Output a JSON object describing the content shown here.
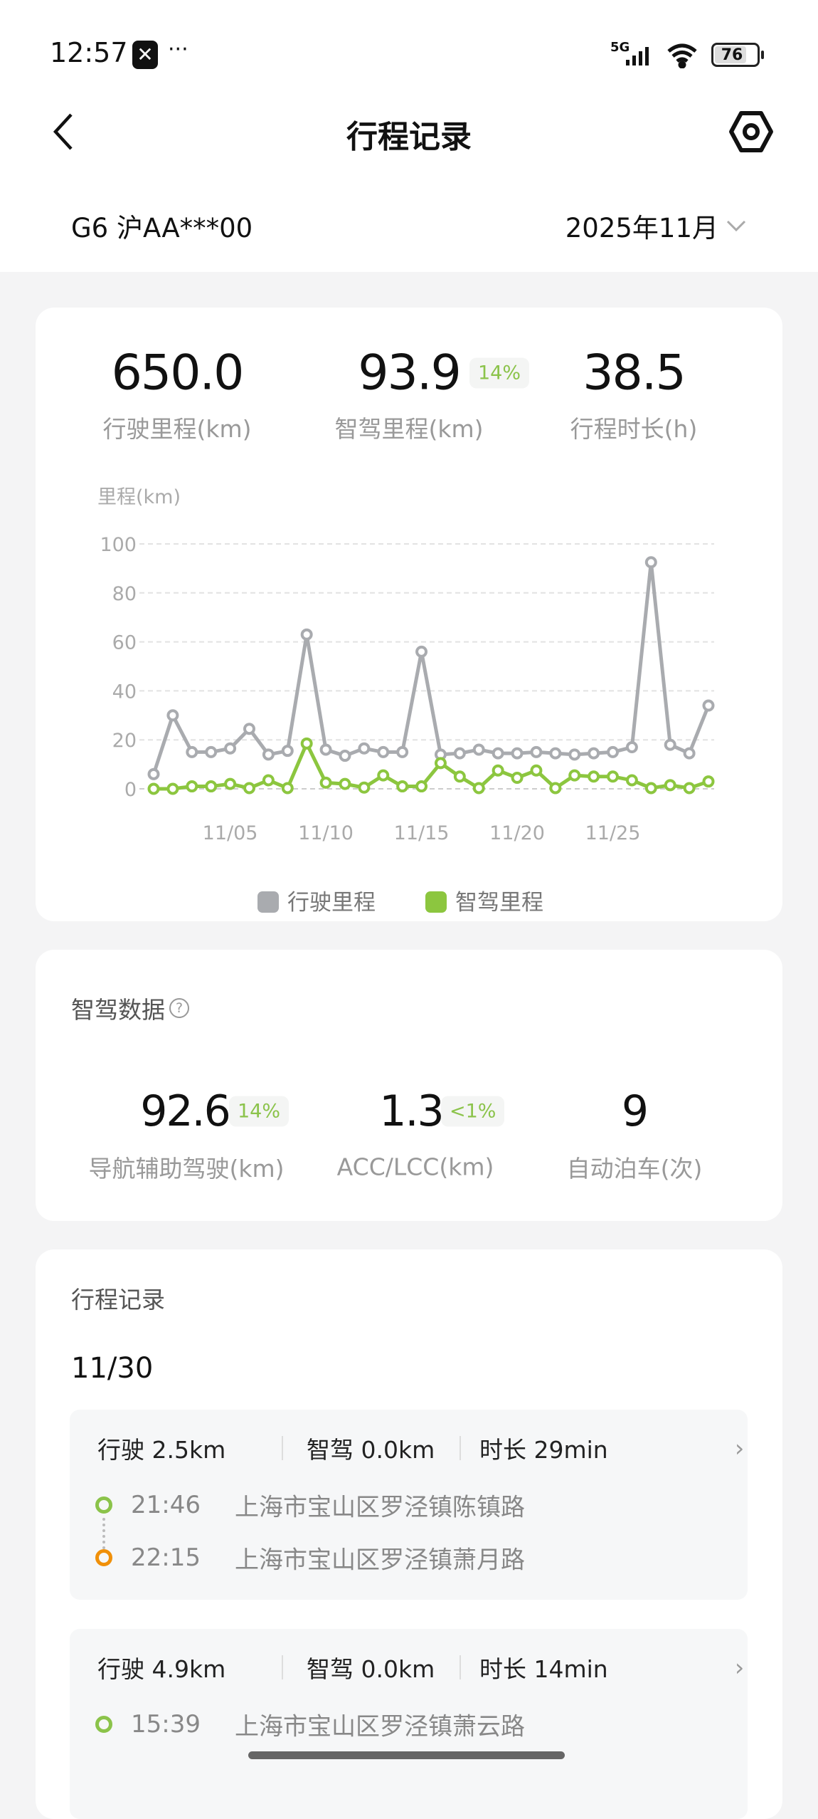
{
  "status_bar": {
    "time": "12:57",
    "more": "···",
    "network": "5G",
    "battery": "76"
  },
  "header": {
    "title": "行程记录",
    "back_icon": "chevron-left-icon",
    "settings_icon": "hexagon-gear-icon"
  },
  "vehicle": {
    "name": "G6 沪AA***00",
    "month": "2025年11月"
  },
  "summary": {
    "items": [
      {
        "value": "650.0",
        "label": "行驶里程(km)"
      },
      {
        "value": "93.9",
        "label": "智驾里程(km)",
        "badge": "14%"
      },
      {
        "value": "38.5",
        "label": "行程时长(h)"
      }
    ]
  },
  "chart_data": {
    "type": "line",
    "ylabel": "里程(km)",
    "ylim": [
      0,
      100
    ],
    "yticks": [
      "100",
      "80",
      "60",
      "40",
      "20",
      "0"
    ],
    "x": [
      "11/01",
      "11/02",
      "11/03",
      "11/04",
      "11/05",
      "11/06",
      "11/07",
      "11/08",
      "11/09",
      "11/10",
      "11/11",
      "11/12",
      "11/13",
      "11/14",
      "11/15",
      "11/16",
      "11/17",
      "11/18",
      "11/19",
      "11/20",
      "11/21",
      "11/22",
      "11/23",
      "11/24",
      "11/25",
      "11/26",
      "11/27",
      "11/28",
      "11/29",
      "11/30"
    ],
    "xticks": [
      "11/05",
      "11/10",
      "11/15",
      "11/20",
      "11/25"
    ],
    "grid": true,
    "legend": "bottom",
    "series": [
      {
        "name": "行驶里程",
        "color": "#a9abaf",
        "values": [
          6,
          30,
          15,
          15,
          16.5,
          24.5,
          14,
          15.5,
          63,
          16,
          13.5,
          16.5,
          15,
          15,
          56,
          14,
          14.5,
          16,
          14.5,
          14.5,
          15,
          14.5,
          14,
          14.5,
          15,
          17,
          92.5,
          18,
          14.5,
          34
        ]
      },
      {
        "name": "智驾里程",
        "color": "#8cc63f",
        "values": [
          0,
          0,
          1,
          1,
          2,
          0.3,
          3.5,
          0.3,
          18.5,
          2.5,
          2,
          0.5,
          5.5,
          1,
          1,
          10.5,
          5,
          0.3,
          7.5,
          4.5,
          7.5,
          0.3,
          5.5,
          5,
          5,
          3.5,
          0.3,
          1.5,
          0.3,
          3
        ]
      }
    ]
  },
  "smart_drive": {
    "title": "智驾数据",
    "help_icon": "question-circle-icon",
    "items": [
      {
        "value": "92.6",
        "badge": "14%",
        "label": "导航辅助驾驶(km)"
      },
      {
        "value": "1.3",
        "badge": "<1%",
        "label": "ACC/LCC(km)"
      },
      {
        "value": "9",
        "label": "自动泊车(次)"
      }
    ]
  },
  "trips": {
    "title": "行程记录",
    "date": "11/30",
    "items": [
      {
        "drive": "行驶 2.5km",
        "smart": "智驾 0.0km",
        "duration": "时长 29min",
        "start_time": "21:46",
        "start_addr": "上海市宝山区罗泾镇陈镇路",
        "end_time": "22:15",
        "end_addr": "上海市宝山区罗泾镇萧月路"
      },
      {
        "drive": "行驶 4.9km",
        "smart": "智驾 0.0km",
        "duration": "时长 14min",
        "start_time": "15:39",
        "start_addr": "上海市宝山区罗泾镇萧云路"
      }
    ]
  },
  "colors": {
    "accent_green": "#8cc63f",
    "end_orange": "#f0900a",
    "series_gray": "#a9abaf"
  }
}
